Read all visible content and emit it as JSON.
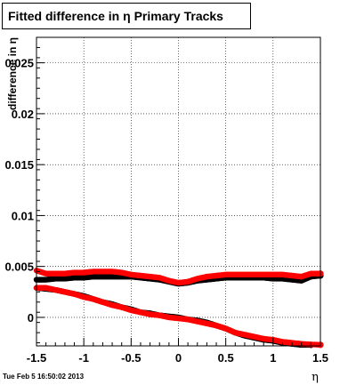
{
  "title": "Fitted difference in  η  Primary Tracks",
  "timestamp": "Tue Feb  5 16:50:02 2013",
  "chart_data": {
    "type": "scatter",
    "title": "Fitted difference in  η  Primary Tracks",
    "xlabel": "η",
    "ylabel": "difference in η",
    "xlim": [
      -1.5,
      1.5
    ],
    "ylim": [
      -0.0028,
      0.0275
    ],
    "grid": true,
    "x_ticks": [
      -1.5,
      -1,
      -0.5,
      0,
      0.5,
      1,
      1.5
    ],
    "x_tick_labels": [
      "-1.5",
      "-1",
      "-0.5",
      "0",
      "0.5",
      "1",
      "1.5"
    ],
    "y_ticks": [
      0,
      0.005,
      0.01,
      0.015,
      0.02,
      0.025
    ],
    "y_tick_labels": [
      "0",
      "0.005",
      "0.01",
      "0.015",
      "0.02",
      "0.025"
    ],
    "series": [
      {
        "color": "#000000",
        "x": [
          -1.5,
          -1.4,
          -1.3,
          -1.2,
          -1.1,
          -1.0,
          -0.9,
          -0.8,
          -0.7,
          -0.6,
          -0.5,
          -0.4,
          -0.3,
          -0.2,
          -0.1,
          0.0,
          0.1,
          0.2,
          0.3,
          0.4,
          0.5,
          0.6,
          0.7,
          0.8,
          0.9,
          1.0,
          1.1,
          1.2,
          1.3,
          1.4,
          1.5
        ],
        "values": [
          0.0037,
          0.0037,
          0.0038,
          0.0038,
          0.0039,
          0.0039,
          0.004,
          0.004,
          0.004,
          0.004,
          0.004,
          0.0039,
          0.0038,
          0.0037,
          0.0035,
          0.0033,
          0.0034,
          0.0036,
          0.0037,
          0.0038,
          0.0039,
          0.0039,
          0.0039,
          0.0039,
          0.0039,
          0.0038,
          0.0038,
          0.0037,
          0.0036,
          0.004,
          0.0041
        ]
      },
      {
        "color": "#000000",
        "x": [
          -1.5,
          -1.4,
          -1.3,
          -1.2,
          -1.1,
          -1.0,
          -0.9,
          -0.8,
          -0.7,
          -0.6,
          -0.5,
          -0.4,
          -0.3,
          -0.2,
          -0.1,
          0.0,
          0.1,
          0.2,
          0.3,
          0.4,
          0.5,
          0.6,
          0.7,
          0.8,
          0.9,
          1.0,
          1.1,
          1.2,
          1.3,
          1.4
        ],
        "values": [
          0.0029,
          0.0028,
          0.0027,
          0.0025,
          0.0023,
          0.0021,
          0.0018,
          0.0015,
          0.0013,
          0.001,
          0.0008,
          0.0005,
          0.0004,
          0.0002,
          0.0001,
          0.0,
          -0.0002,
          -0.0003,
          -0.0005,
          -0.0008,
          -0.0011,
          -0.0015,
          -0.0018,
          -0.002,
          -0.0022,
          -0.0023,
          -0.0025,
          -0.0026,
          -0.0027,
          -0.0027
        ]
      },
      {
        "color": "#ff0000",
        "x": [
          -1.5,
          -1.4,
          -1.3,
          -1.2,
          -1.1,
          -1.0,
          -0.9,
          -0.8,
          -0.7,
          -0.6,
          -0.5,
          -0.4,
          -0.3,
          -0.2,
          -0.1,
          0.0,
          0.1,
          0.2,
          0.3,
          0.4,
          0.5,
          0.6,
          0.7,
          0.8,
          0.9,
          1.0,
          1.1,
          1.2,
          1.3,
          1.4,
          1.5
        ],
        "values": [
          0.0046,
          0.0043,
          0.0043,
          0.0043,
          0.0044,
          0.0044,
          0.0045,
          0.0045,
          0.0045,
          0.0044,
          0.0042,
          0.0041,
          0.004,
          0.0039,
          0.0036,
          0.0034,
          0.0035,
          0.0038,
          0.004,
          0.0041,
          0.0042,
          0.0042,
          0.0042,
          0.0042,
          0.0042,
          0.0042,
          0.0042,
          0.0041,
          0.004,
          0.0043,
          0.0043
        ]
      },
      {
        "color": "#ff0000",
        "x": [
          -1.5,
          -1.4,
          -1.3,
          -1.2,
          -1.1,
          -1.0,
          -0.9,
          -0.8,
          -0.7,
          -0.6,
          -0.5,
          -0.4,
          -0.3,
          -0.2,
          -0.1,
          0.0,
          0.1,
          0.2,
          0.3,
          0.4,
          0.5,
          0.6,
          0.7,
          0.8,
          0.9,
          1.0,
          1.1,
          1.2,
          1.3,
          1.5
        ],
        "values": [
          0.0029,
          0.0029,
          0.0027,
          0.0025,
          0.0023,
          0.002,
          0.0018,
          0.0015,
          0.0012,
          0.001,
          0.0007,
          0.0005,
          0.0003,
          0.0002,
          0.0,
          -0.0001,
          -0.0002,
          -0.0004,
          -0.0006,
          -0.0008,
          -0.0011,
          -0.0015,
          -0.0017,
          -0.0019,
          -0.0021,
          -0.0022,
          -0.0024,
          -0.0025,
          -0.0026,
          -0.0027
        ]
      }
    ]
  }
}
